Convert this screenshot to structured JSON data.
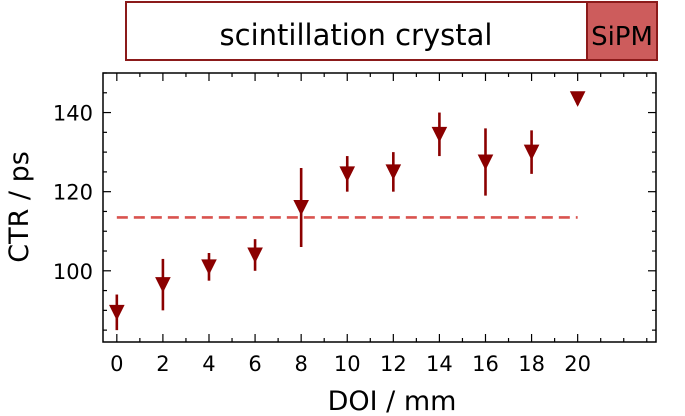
{
  "header": {
    "crystal_label": "scintillation crystal",
    "sipm_label": "SiPM",
    "crystal_border_color": "#8b1a1a",
    "sipm_fill_color": "#cd5c5c"
  },
  "chart_data": {
    "type": "scatter",
    "title": "",
    "xlabel": "DOI / mm",
    "ylabel": "CTR / ps",
    "xlim": [
      -0.6,
      23.4
    ],
    "ylim": [
      82,
      150
    ],
    "xticks": [
      0,
      2,
      4,
      6,
      8,
      10,
      12,
      14,
      16,
      18,
      20
    ],
    "xtick_labels": [
      "0",
      "2",
      "4",
      "6",
      "8",
      "10",
      "12",
      "14",
      "16",
      "18",
      "20"
    ],
    "yticks": [
      100,
      120,
      140
    ],
    "ytick_labels": [
      "100",
      "120",
      "140"
    ],
    "grid": false,
    "marker": "triangle-down",
    "series": [
      {
        "color": "#8b0000",
        "points": [
          {
            "x": 0,
            "y": 89.5,
            "err": 4.5
          },
          {
            "x": 2,
            "y": 96.5,
            "err": 6.5
          },
          {
            "x": 4,
            "y": 101,
            "err": 3.5
          },
          {
            "x": 6,
            "y": 104,
            "err": 4
          },
          {
            "x": 8,
            "y": 116,
            "err": 10
          },
          {
            "x": 10,
            "y": 124.5,
            "err": 4.5
          },
          {
            "x": 12,
            "y": 125,
            "err": 5
          },
          {
            "x": 14,
            "y": 134.5,
            "err": 5.5
          },
          {
            "x": 16,
            "y": 127.5,
            "err": 8.5
          },
          {
            "x": 18,
            "y": 130,
            "err": 5.5
          },
          {
            "x": 20,
            "y": 143.5,
            "err": 1.5
          }
        ]
      }
    ],
    "reference_line": {
      "y": 113.5,
      "x_start": 0,
      "x_end": 20,
      "style": "dashed",
      "color": "#d9534f"
    }
  }
}
